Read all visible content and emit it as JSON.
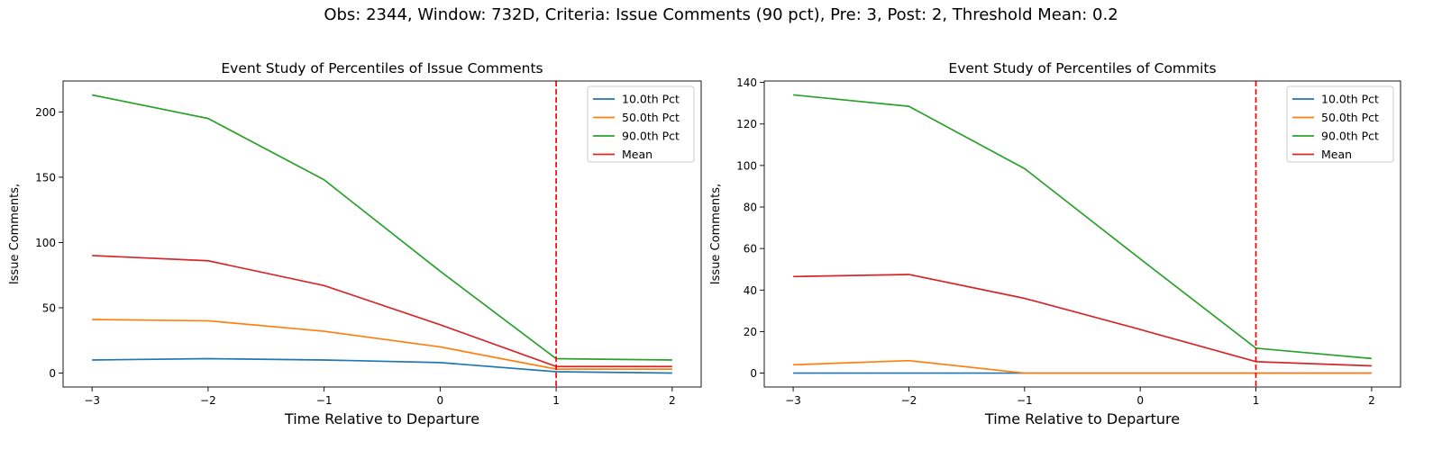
{
  "figure": {
    "suptitle": "Obs: 2344, Window: 732D, Criteria: Issue Comments (90 pct), Pre: 3, Post: 2, Threshold Mean: 0.2"
  },
  "chart_data": [
    {
      "type": "line",
      "title": "Event Study of Percentiles of Issue Comments",
      "xlabel": "Time Relative to Departure",
      "ylabel": "Issue Comments,",
      "x": [
        -3,
        -2,
        -1,
        0,
        1,
        2
      ],
      "xticks": [
        -3,
        -2,
        -1,
        0,
        1,
        2
      ],
      "xtick_labels": [
        "−3",
        "−2",
        "−1",
        "0",
        "1",
        "2"
      ],
      "yticks": [
        0,
        50,
        100,
        150,
        200
      ],
      "xlim": [
        -3.25,
        2.25
      ],
      "ylim": [
        -10.7,
        223.7
      ],
      "vline": {
        "x": 1,
        "color": "#ff0000",
        "style": "dashed"
      },
      "legend": "top-right",
      "grid": false,
      "series": [
        {
          "name": "10.0th Pct",
          "color": "#1f77b4",
          "values": [
            10,
            11,
            10,
            8,
            1,
            0
          ]
        },
        {
          "name": "50.0th Pct",
          "color": "#ff7f0e",
          "values": [
            41,
            40,
            32,
            20,
            3,
            3
          ]
        },
        {
          "name": "90.0th Pct",
          "color": "#2ca02c",
          "values": [
            213,
            195,
            148,
            78,
            11,
            10
          ]
        },
        {
          "name": "Mean",
          "color": "#d62728",
          "values": [
            90,
            86,
            67,
            37,
            5,
            5
          ]
        }
      ]
    },
    {
      "type": "line",
      "title": "Event Study of Percentiles of Commits",
      "xlabel": "Time Relative to Departure",
      "ylabel": "Issue Comments,",
      "x": [
        -3,
        -2,
        -1,
        0,
        1,
        2
      ],
      "xticks": [
        -3,
        -2,
        -1,
        0,
        1,
        2
      ],
      "xtick_labels": [
        "−3",
        "−2",
        "−1",
        "0",
        "1",
        "2"
      ],
      "yticks": [
        0,
        20,
        40,
        60,
        80,
        100,
        120,
        140
      ],
      "xlim": [
        -3.25,
        2.25
      ],
      "ylim": [
        -6.7,
        140.7
      ],
      "vline": {
        "x": 1,
        "color": "#ff0000",
        "style": "dashed"
      },
      "legend": "top-right",
      "grid": false,
      "series": [
        {
          "name": "10.0th Pct",
          "color": "#1f77b4",
          "values": [
            0,
            0,
            0,
            0,
            0,
            0
          ]
        },
        {
          "name": "50.0th Pct",
          "color": "#ff7f0e",
          "values": [
            4,
            6,
            0,
            0,
            0,
            0
          ]
        },
        {
          "name": "90.0th Pct",
          "color": "#2ca02c",
          "values": [
            134,
            128.5,
            98.5,
            55,
            12,
            7
          ]
        },
        {
          "name": "Mean",
          "color": "#d62728",
          "values": [
            46.5,
            47.5,
            36,
            21,
            5.5,
            3.5
          ]
        }
      ]
    }
  ]
}
